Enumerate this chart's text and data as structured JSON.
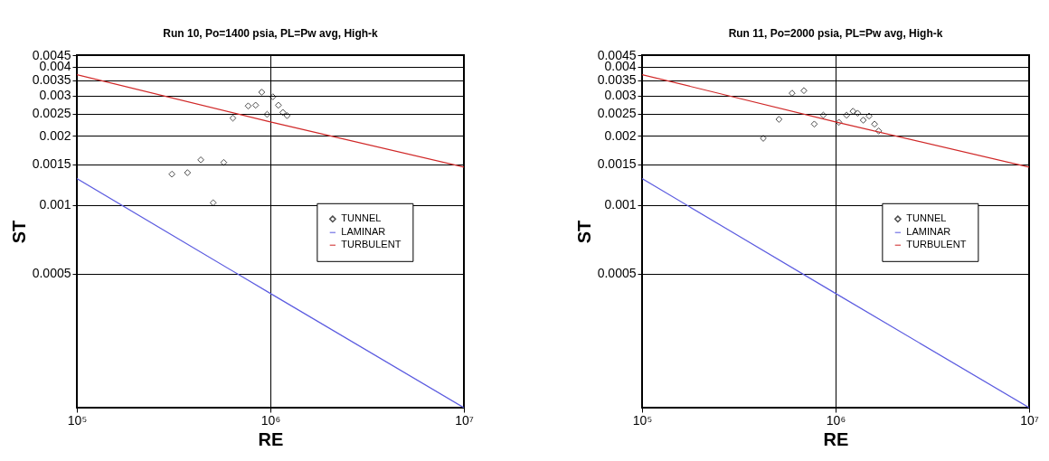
{
  "chart_data": [
    {
      "type": "scatter",
      "title": "Run 10, Po=1400 psia, PL=Pw avg, High-k",
      "xlabel": "RE",
      "ylabel": "ST",
      "log": "xy",
      "grid": true,
      "legend": "right",
      "xlim": [
        100000,
        10000000
      ],
      "xticks": [
        {
          "value": 100000,
          "label": "10⁵"
        },
        {
          "value": 1000000,
          "label": "10⁶"
        },
        {
          "value": 10000000,
          "label": "10⁷"
        }
      ],
      "ylim": [
        0.00013,
        0.0045
      ],
      "yticks": [
        0.0005,
        0.001,
        0.0015,
        0.002,
        0.0025,
        0.003,
        0.0035,
        0.004,
        0.0045
      ],
      "series": [
        {
          "name": "TUNNEL",
          "marker": "diamond",
          "color": "#000000",
          "x": [
            310000,
            373000,
            437000,
            506000,
            574000,
            640000,
            768000,
            839000,
            902000,
            962000,
            1030000,
            1100000,
            1160000,
            1220000
          ],
          "values": [
            0.00136,
            0.00138,
            0.00157,
            0.00102,
            0.00153,
            0.00239,
            0.0027,
            0.00272,
            0.0031,
            0.00248,
            0.00296,
            0.00272,
            0.00253,
            0.00245
          ]
        },
        {
          "name": "LAMINAR",
          "type": "line",
          "color": "#5c5ce0",
          "x": [
            100000,
            1000000,
            10000000
          ],
          "values": [
            0.0013,
            0.00041,
            0.00013
          ]
        },
        {
          "name": "TURBULENT",
          "type": "line",
          "color": "#d02828",
          "x": [
            100000,
            1000000,
            10000000
          ],
          "values": [
            0.0037,
            0.0023,
            0.00146
          ]
        }
      ]
    },
    {
      "type": "scatter",
      "title": "Run 11, Po=2000 psia, PL=Pw avg, High-k",
      "xlabel": "RE",
      "ylabel": "ST",
      "log": "xy",
      "grid": true,
      "legend": "right",
      "xlim": [
        100000,
        10000000
      ],
      "xticks": [
        {
          "value": 100000,
          "label": "10⁵"
        },
        {
          "value": 1000000,
          "label": "10⁶"
        },
        {
          "value": 10000000,
          "label": "10⁷"
        }
      ],
      "ylim": [
        0.00013,
        0.0045
      ],
      "yticks": [
        0.0005,
        0.001,
        0.0015,
        0.002,
        0.0025,
        0.003,
        0.0035,
        0.004,
        0.0045
      ],
      "series": [
        {
          "name": "TUNNEL",
          "marker": "diamond",
          "color": "#000000",
          "x": [
            423000,
            510000,
            596000,
            686000,
            776000,
            864000,
            1040000,
            1140000,
            1230000,
            1300000,
            1390000,
            1490000,
            1590000,
            1670000
          ],
          "values": [
            0.00195,
            0.00236,
            0.00307,
            0.00315,
            0.00225,
            0.00246,
            0.00229,
            0.00246,
            0.00256,
            0.00251,
            0.00234,
            0.00244,
            0.00225,
            0.0021
          ]
        },
        {
          "name": "LAMINAR",
          "type": "line",
          "color": "#5c5ce0",
          "x": [
            100000,
            1000000,
            10000000
          ],
          "values": [
            0.0013,
            0.00041,
            0.00013
          ]
        },
        {
          "name": "TURBULENT",
          "type": "line",
          "color": "#d02828",
          "x": [
            100000,
            1000000,
            10000000
          ],
          "values": [
            0.0037,
            0.0023,
            0.00146
          ]
        }
      ]
    }
  ]
}
